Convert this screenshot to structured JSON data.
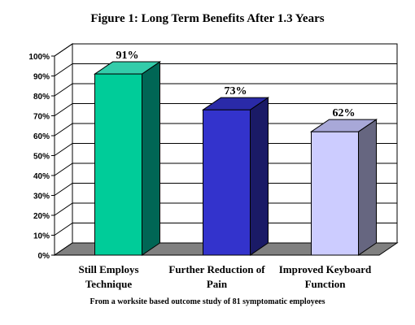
{
  "chart_data": {
    "type": "bar",
    "title": "Figure 1: Long Term Benefits After 1.3 Years",
    "categories": [
      [
        "Still Employs",
        "Technique"
      ],
      [
        "Further Reduction of",
        "Pain"
      ],
      [
        "Improved Keyboard",
        "Function"
      ]
    ],
    "values": [
      91,
      73,
      62
    ],
    "data_labels": [
      "91%",
      "73%",
      "62%"
    ],
    "ylim": [
      0,
      100
    ],
    "yticks": [
      0,
      10,
      20,
      30,
      40,
      50,
      60,
      70,
      80,
      90,
      100
    ],
    "ytick_labels": [
      "0%",
      "10%",
      "20%",
      "30%",
      "40%",
      "50%",
      "60%",
      "70%",
      "80%",
      "90%",
      "100%"
    ],
    "grid": true,
    "legend": "none",
    "colors": {
      "front": [
        "#00cc99",
        "#3333cc",
        "#ccccff"
      ],
      "side": [
        "#006655",
        "#1a1a66",
        "#666680"
      ],
      "top": [
        "#33ccaa",
        "#2a2aa8",
        "#a8a8d8"
      ],
      "floor": "#808080"
    },
    "footnote": "From a worksite based outcome study of 81 symptomatic employees"
  }
}
